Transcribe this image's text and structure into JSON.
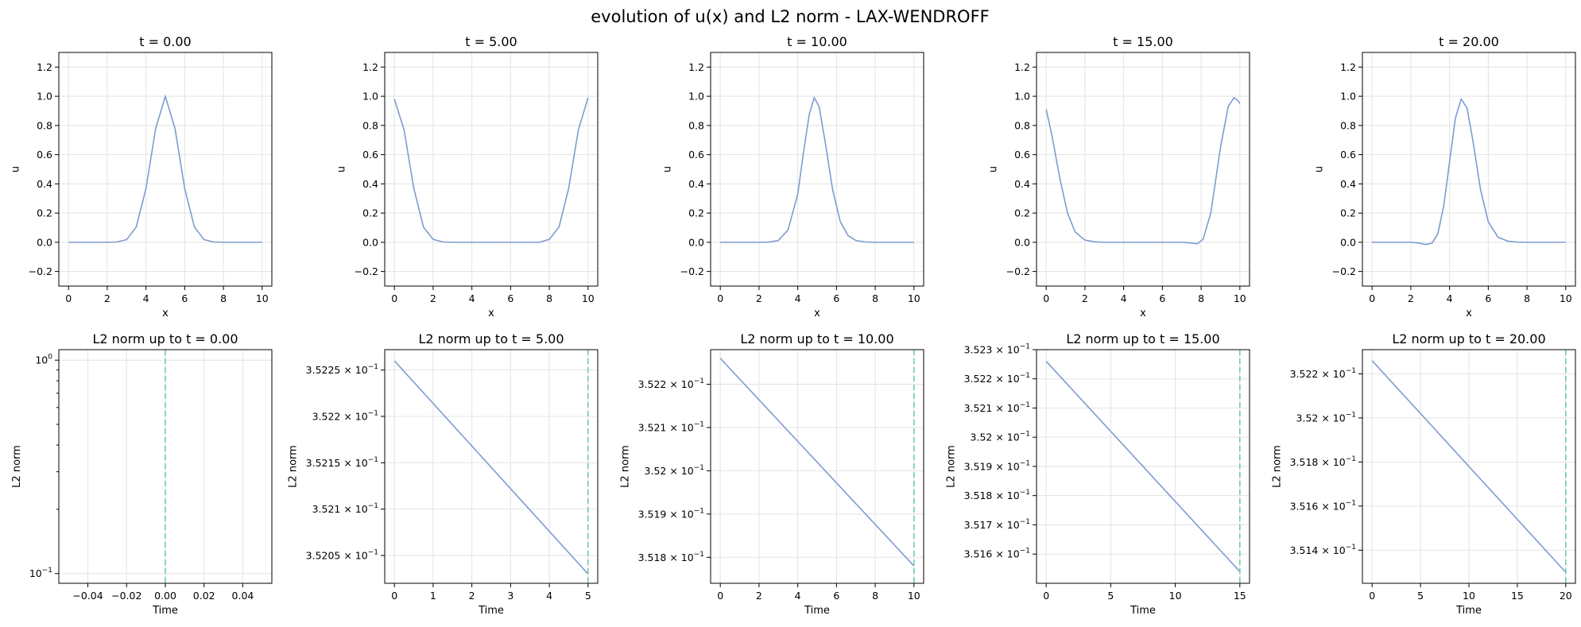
{
  "figure": {
    "suptitle": "evolution of u(x) and L2 norm - LAX-WENDROFF",
    "line_color": "#7d9cd0",
    "marker_color": "#6ccbaa"
  },
  "chart_data": [
    {
      "type": "line",
      "title": "t = 0.00",
      "xlabel": "x",
      "ylabel": "u",
      "xlim": [
        -0.5,
        10.5
      ],
      "ylim": [
        -0.3,
        1.3
      ],
      "xticks": [
        0,
        2,
        4,
        6,
        8,
        10
      ],
      "xtick_labels": [
        "0",
        "2",
        "4",
        "6",
        "8",
        "10"
      ],
      "yticks": [
        -0.2,
        0.0,
        0.2,
        0.4,
        0.6,
        0.8,
        1.0,
        1.2
      ],
      "ytick_labels": [
        "−0.2",
        "0.0",
        "0.2",
        "0.4",
        "0.6",
        "0.8",
        "1.0",
        "1.2"
      ],
      "grid": true,
      "series": [
        {
          "x": [
            0,
            0.5,
            1,
            1.5,
            2,
            2.5,
            3,
            3.5,
            4,
            4.5,
            5,
            5.5,
            6,
            6.5,
            7,
            7.5,
            8,
            8.5,
            9,
            9.5,
            10
          ],
          "y": [
            0,
            0,
            0,
            0,
            0,
            0.002,
            0.018,
            0.105,
            0.368,
            0.779,
            1.0,
            0.779,
            0.368,
            0.105,
            0.018,
            0.002,
            0,
            0,
            0,
            0,
            0
          ]
        }
      ]
    },
    {
      "type": "line",
      "title": "t = 5.00",
      "xlabel": "x",
      "ylabel": "u",
      "xlim": [
        -0.5,
        10.5
      ],
      "ylim": [
        -0.3,
        1.3
      ],
      "xticks": [
        0,
        2,
        4,
        6,
        8,
        10
      ],
      "xtick_labels": [
        "0",
        "2",
        "4",
        "6",
        "8",
        "10"
      ],
      "yticks": [
        -0.2,
        0.0,
        0.2,
        0.4,
        0.6,
        0.8,
        1.0,
        1.2
      ],
      "ytick_labels": [
        "−0.2",
        "0.0",
        "0.2",
        "0.4",
        "0.6",
        "0.8",
        "1.0",
        "1.2"
      ],
      "grid": true,
      "series": [
        {
          "x": [
            0,
            0.5,
            1,
            1.5,
            2,
            2.5,
            3,
            3.5,
            4,
            4.5,
            5,
            5.5,
            6,
            6.5,
            7,
            7.5,
            8,
            8.5,
            9,
            9.5,
            10
          ],
          "y": [
            0.98,
            0.77,
            0.37,
            0.105,
            0.02,
            0.002,
            0,
            0,
            0,
            0,
            0,
            0,
            0,
            0,
            0,
            0,
            0.02,
            0.105,
            0.37,
            0.77,
            0.99
          ]
        }
      ]
    },
    {
      "type": "line",
      "title": "t = 10.00",
      "xlabel": "x",
      "ylabel": "u",
      "xlim": [
        -0.5,
        10.5
      ],
      "ylim": [
        -0.3,
        1.3
      ],
      "xticks": [
        0,
        2,
        4,
        6,
        8,
        10
      ],
      "xtick_labels": [
        "0",
        "2",
        "4",
        "6",
        "8",
        "10"
      ],
      "yticks": [
        -0.2,
        0.0,
        0.2,
        0.4,
        0.6,
        0.8,
        1.0,
        1.2
      ],
      "ytick_labels": [
        "−0.2",
        "0.0",
        "0.2",
        "0.4",
        "0.6",
        "0.8",
        "1.0",
        "1.2"
      ],
      "grid": true,
      "series": [
        {
          "x": [
            0,
            0.5,
            1,
            1.5,
            2,
            2.5,
            3,
            3.5,
            4,
            4.3,
            4.6,
            4.85,
            5.1,
            5.4,
            5.8,
            6.2,
            6.6,
            7,
            7.5,
            8,
            9,
            10
          ],
          "y": [
            0,
            0,
            0,
            0,
            0,
            0.001,
            0.012,
            0.085,
            0.33,
            0.62,
            0.88,
            0.99,
            0.93,
            0.7,
            0.36,
            0.14,
            0.045,
            0.012,
            0.002,
            0,
            0,
            0
          ]
        }
      ]
    },
    {
      "type": "line",
      "title": "t = 15.00",
      "xlabel": "x",
      "ylabel": "u",
      "xlim": [
        -0.5,
        10.5
      ],
      "ylim": [
        -0.3,
        1.3
      ],
      "xticks": [
        0,
        2,
        4,
        6,
        8,
        10
      ],
      "xtick_labels": [
        "0",
        "2",
        "4",
        "6",
        "8",
        "10"
      ],
      "yticks": [
        -0.2,
        0.0,
        0.2,
        0.4,
        0.6,
        0.8,
        1.0,
        1.2
      ],
      "ytick_labels": [
        "−0.2",
        "0.0",
        "0.2",
        "0.4",
        "0.6",
        "0.8",
        "1.0",
        "1.2"
      ],
      "grid": true,
      "series": [
        {
          "x": [
            0,
            0.3,
            0.7,
            1.1,
            1.5,
            2,
            2.5,
            3,
            4,
            5,
            6,
            7,
            7.5,
            7.8,
            8.1,
            8.5,
            9,
            9.4,
            9.7,
            9.9,
            10
          ],
          "y": [
            0.91,
            0.73,
            0.44,
            0.2,
            0.07,
            0.015,
            0.003,
            0,
            0,
            0,
            0,
            0,
            -0.005,
            -0.01,
            0.02,
            0.2,
            0.65,
            0.93,
            0.99,
            0.97,
            0.95
          ]
        }
      ]
    },
    {
      "type": "line",
      "title": "t = 20.00",
      "xlabel": "x",
      "ylabel": "u",
      "xlim": [
        -0.5,
        10.5
      ],
      "ylim": [
        -0.3,
        1.3
      ],
      "xticks": [
        0,
        2,
        4,
        6,
        8,
        10
      ],
      "xtick_labels": [
        "0",
        "2",
        "4",
        "6",
        "8",
        "10"
      ],
      "yticks": [
        -0.2,
        0.0,
        0.2,
        0.4,
        0.6,
        0.8,
        1.0,
        1.2
      ],
      "ytick_labels": [
        "−0.2",
        "0.0",
        "0.2",
        "0.4",
        "0.6",
        "0.8",
        "1.0",
        "1.2"
      ],
      "grid": true,
      "series": [
        {
          "x": [
            0,
            1,
            2,
            2.4,
            2.8,
            3.1,
            3.4,
            3.7,
            4,
            4.3,
            4.6,
            4.9,
            5.2,
            5.6,
            6,
            6.5,
            7,
            7.5,
            8,
            9,
            10
          ],
          "y": [
            0,
            0,
            0,
            -0.005,
            -0.015,
            -0.005,
            0.06,
            0.25,
            0.55,
            0.85,
            0.98,
            0.92,
            0.7,
            0.36,
            0.14,
            0.035,
            0.008,
            0.001,
            0,
            0,
            0
          ]
        }
      ]
    },
    {
      "type": "line",
      "title": "L2 norm up to t = 0.00",
      "xlabel": "Time",
      "ylabel": "L2 norm",
      "xlim": [
        -0.055,
        0.055
      ],
      "ylim": [
        0.09,
        1.12
      ],
      "yscale": "log",
      "xticks": [
        -0.04,
        -0.02,
        0.0,
        0.02,
        0.04
      ],
      "xtick_labels": [
        "−0.04",
        "−0.02",
        "0.00",
        "0.02",
        "0.04"
      ],
      "yticks": [
        0.1,
        1.0
      ],
      "ytick_labels": [
        {
          "base": "10",
          "exp": "−1"
        },
        {
          "base": "10",
          "exp": "0"
        }
      ],
      "minor_yticks": [
        0.2,
        0.3,
        0.4,
        0.5,
        0.6,
        0.7,
        0.8,
        0.9
      ],
      "marker_x": 0.0,
      "grid": true,
      "series": []
    },
    {
      "type": "line",
      "title": "L2 norm up to t = 5.00",
      "xlabel": "Time",
      "ylabel": "L2 norm",
      "xlim": [
        -0.25,
        5.25
      ],
      "ylim": [
        0.35202,
        0.352272
      ],
      "yscale": "log",
      "xticks": [
        0,
        1,
        2,
        3,
        4,
        5
      ],
      "xtick_labels": [
        "0",
        "1",
        "2",
        "3",
        "4",
        "5"
      ],
      "yticks": [
        0.35205,
        0.3521,
        0.35215,
        0.3522,
        0.35225
      ],
      "ytick_labels": [
        {
          "base": "3.5205 × 10",
          "exp": "−1"
        },
        {
          "base": "3.521 × 10",
          "exp": "−1"
        },
        {
          "base": "3.5215 × 10",
          "exp": "−1"
        },
        {
          "base": "3.522 × 10",
          "exp": "−1"
        },
        {
          "base": "3.5225 × 10",
          "exp": "−1"
        }
      ],
      "marker_x": 5.0,
      "grid": true,
      "series": [
        {
          "x": [
            0,
            5
          ],
          "y": [
            0.35226,
            0.35203
          ]
        }
      ]
    },
    {
      "type": "line",
      "title": "L2 norm up to t = 10.00",
      "xlabel": "Time",
      "ylabel": "L2 norm",
      "xlim": [
        -0.5,
        10.5
      ],
      "ylim": [
        0.35174,
        0.35228
      ],
      "yscale": "log",
      "xticks": [
        0,
        2,
        4,
        6,
        8,
        10
      ],
      "xtick_labels": [
        "0",
        "2",
        "4",
        "6",
        "8",
        "10"
      ],
      "yticks": [
        0.3518,
        0.3519,
        0.352,
        0.3521,
        0.3522
      ],
      "ytick_labels": [
        {
          "base": "3.518 × 10",
          "exp": "−1"
        },
        {
          "base": "3.519 × 10",
          "exp": "−1"
        },
        {
          "base": "3.52 × 10",
          "exp": "−1"
        },
        {
          "base": "3.521 × 10",
          "exp": "−1"
        },
        {
          "base": "3.522 × 10",
          "exp": "−1"
        }
      ],
      "marker_x": 10.0,
      "grid": true,
      "series": [
        {
          "x": [
            0,
            10
          ],
          "y": [
            0.35226,
            0.35178
          ]
        }
      ]
    },
    {
      "type": "line",
      "title": "L2 norm up to t = 15.00",
      "xlabel": "Time",
      "ylabel": "L2 norm",
      "xlim": [
        -0.75,
        15.75
      ],
      "ylim": [
        0.3515,
        0.3523
      ],
      "yscale": "log",
      "xticks": [
        0,
        5,
        10,
        15
      ],
      "xtick_labels": [
        "0",
        "5",
        "10",
        "15"
      ],
      "yticks": [
        0.3516,
        0.3517,
        0.3518,
        0.3519,
        0.352,
        0.3521,
        0.3522,
        0.3523
      ],
      "ytick_labels": [
        {
          "base": "3.516 × 10",
          "exp": "−1"
        },
        {
          "base": "3.517 × 10",
          "exp": "−1"
        },
        {
          "base": "3.518 × 10",
          "exp": "−1"
        },
        {
          "base": "3.519 × 10",
          "exp": "−1"
        },
        {
          "base": "3.52 × 10",
          "exp": "−1"
        },
        {
          "base": "3.521 × 10",
          "exp": "−1"
        },
        {
          "base": "3.522 × 10",
          "exp": "−1"
        },
        {
          "base": "3.523 × 10",
          "exp": "−1"
        }
      ],
      "marker_x": 15.0,
      "grid": true,
      "series": [
        {
          "x": [
            0,
            15
          ],
          "y": [
            0.35226,
            0.35154
          ]
        }
      ]
    },
    {
      "type": "line",
      "title": "L2 norm up to t = 20.00",
      "xlabel": "Time",
      "ylabel": "L2 norm",
      "xlim": [
        -1.0,
        21.0
      ],
      "ylim": [
        0.35125,
        0.35231
      ],
      "yscale": "log",
      "xticks": [
        0,
        5,
        10,
        15,
        20
      ],
      "xtick_labels": [
        "0",
        "5",
        "10",
        "15",
        "20"
      ],
      "yticks": [
        0.3514,
        0.3516,
        0.3518,
        0.352,
        0.3522
      ],
      "ytick_labels": [
        {
          "base": "3.514 × 10",
          "exp": "−1"
        },
        {
          "base": "3.516 × 10",
          "exp": "−1"
        },
        {
          "base": "3.518 × 10",
          "exp": "−1"
        },
        {
          "base": "3.52 × 10",
          "exp": "−1"
        },
        {
          "base": "3.522 × 10",
          "exp": "−1"
        }
      ],
      "marker_x": 20.0,
      "grid": true,
      "series": [
        {
          "x": [
            0,
            20
          ],
          "y": [
            0.35226,
            0.3513
          ]
        }
      ]
    }
  ]
}
